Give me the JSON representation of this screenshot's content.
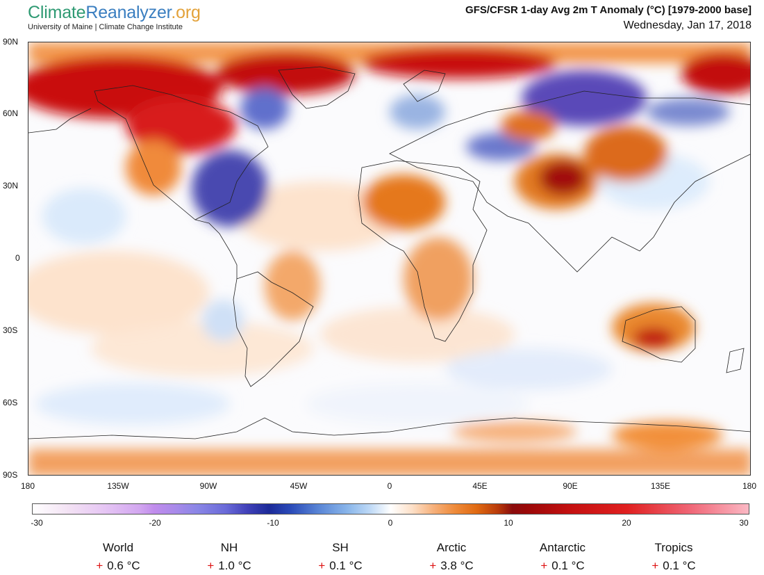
{
  "header": {
    "brand_part1": "Climate",
    "brand_part2": "Reanalyzer",
    "brand_part3": ".org",
    "subtitle": "University of Maine | Climate Change Institute",
    "title": "GFS/CFSR 1-day Avg 2m T Anomaly (°C) [1979-2000 base]",
    "date": "Wednesday, Jan 17, 2018"
  },
  "colors": {
    "brand_green": "#2f9a73",
    "brand_blue": "#3a7ec0",
    "brand_orange": "#e3a23a",
    "positive_sign": "#dd1111"
  },
  "map": {
    "lat_labels": [
      "90N",
      "60N",
      "30N",
      "0",
      "30S",
      "60S",
      "90S"
    ],
    "lon_labels": [
      "180",
      "135W",
      "90W",
      "45W",
      "0",
      "45E",
      "90E",
      "135E",
      "180"
    ]
  },
  "colorbar": {
    "ticks": [
      "-30",
      "-20",
      "-10",
      "0",
      "10",
      "20",
      "30"
    ]
  },
  "stats": [
    {
      "name": "World",
      "sign": "+",
      "value": "0.6 °C"
    },
    {
      "name": "NH",
      "sign": "+",
      "value": "1.0 °C"
    },
    {
      "name": "SH",
      "sign": "+",
      "value": "0.1 °C"
    },
    {
      "name": "Arctic",
      "sign": "+",
      "value": "3.8 °C"
    },
    {
      "name": "Antarctic",
      "sign": "+",
      "value": "0.1 °C"
    },
    {
      "name": "Tropics",
      "sign": "+",
      "value": "0.1 °C"
    }
  ]
}
